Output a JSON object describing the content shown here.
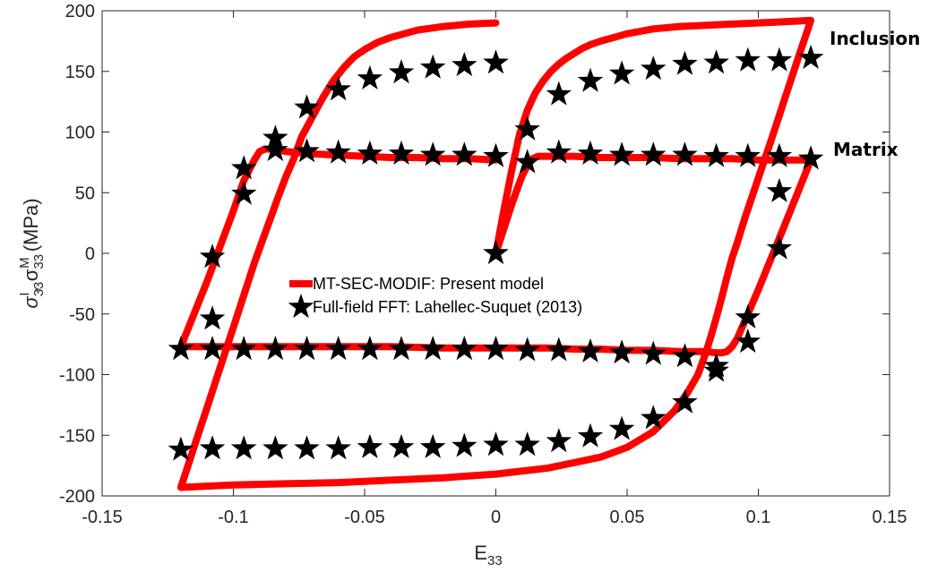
{
  "chart_data": {
    "type": "line",
    "xlabel": "E",
    "xlabel_sub": "33",
    "ylabel_parts": [
      "σ",
      "33",
      "I",
      ", σ",
      "33",
      "M",
      " (MPa)"
    ],
    "xlim": [
      -0.15,
      0.15
    ],
    "ylim": [
      -200,
      200
    ],
    "xticks": [
      -0.15,
      -0.1,
      -0.05,
      0,
      0.05,
      0.1,
      0.15
    ],
    "xtick_labels": [
      "-0.15",
      "-0.1",
      "-0.05",
      "0",
      "0.05",
      "0.1",
      "0.15"
    ],
    "yticks": [
      -200,
      -150,
      -100,
      -50,
      0,
      50,
      100,
      150,
      200
    ],
    "ytick_labels": [
      "-200",
      "-150",
      "-100",
      "-50",
      "0",
      "50",
      "100",
      "150",
      "200"
    ],
    "grid": false,
    "legend_position": "center",
    "annotations": [
      {
        "text": "Inclusion",
        "x": 0.124,
        "y": 175
      },
      {
        "text": "Matrix",
        "x": 0.126,
        "y": 85
      }
    ],
    "series": [
      {
        "name": "MT-SEC-MODIF: Present model",
        "color": "#ff0000",
        "style": "line",
        "segments": [
          {
            "x": [
              0,
              0.003,
              0.006,
              0.009,
              0.012,
              0.015,
              0.018,
              0.021,
              0.024,
              0.027,
              0.03,
              0.033,
              0.036,
              0.04,
              0.045,
              0.05,
              0.055,
              0.06,
              0.07,
              0.08,
              0.09,
              0.1,
              0.11,
              0.12,
              0.115,
              0.11,
              0.105,
              0.1,
              0.095,
              0.092,
              0.09,
              0.088,
              0.086,
              0.084,
              0.082,
              0.08,
              0.077,
              0.073,
              0.068,
              0.06,
              0.05,
              0.04,
              0.02,
              0.0,
              -0.02,
              -0.04,
              -0.06,
              -0.08,
              -0.1,
              -0.12,
              -0.115,
              -0.11,
              -0.105,
              -0.1,
              -0.095,
              -0.092,
              -0.089,
              -0.086,
              -0.083,
              -0.08,
              -0.077,
              -0.074,
              -0.07,
              -0.066,
              -0.062,
              -0.058,
              -0.054,
              -0.05,
              -0.045,
              -0.04,
              -0.03,
              -0.02,
              -0.01,
              0.0
            ],
            "y": [
              0,
              35,
              68,
              98,
              118,
              132,
              142,
              150,
              156,
              161,
              165,
              169,
              172,
              175,
              178,
              181,
              183,
              185,
              187,
              188,
              189,
              190,
              191,
              192,
              160,
              127,
              94,
              62,
              30,
              9,
              -4,
              -20,
              -37,
              -53,
              -68,
              -82,
              -100,
              -115,
              -130,
              -147,
              -160,
              -168,
              -177,
              -182,
              -185,
              -187,
              -189,
              -190,
              -191,
              -193,
              -160,
              -127,
              -94,
              -61,
              -28,
              -8,
              10,
              28,
              46,
              63,
              78,
              96,
              112,
              128,
              142,
              153,
              162,
              168,
              174,
              178,
              184,
              187,
              189,
              190
            ]
          },
          {
            "x": [
              0,
              0.003,
              0.006,
              0.008,
              0.01,
              0.012,
              0.014,
              0.016,
              0.02,
              0.03,
              0.04,
              0.05,
              0.06,
              0.07,
              0.08,
              0.09,
              0.1,
              0.11,
              0.12,
              0.11,
              0.1,
              0.095,
              0.092,
              0.09,
              0.088,
              0.086,
              0.084,
              0.08,
              0.07,
              0.06,
              0.05,
              0.04,
              0.03,
              0.02,
              0.0,
              -0.02,
              -0.04,
              -0.06,
              -0.08,
              -0.1,
              -0.12,
              -0.11,
              -0.1,
              -0.096,
              -0.092,
              -0.09,
              -0.088,
              -0.085,
              -0.08,
              -0.07,
              -0.06,
              -0.05,
              -0.04,
              -0.03,
              -0.02,
              -0.01,
              0.0
            ],
            "y": [
              0,
              20,
              40,
              52,
              64,
              72,
              78,
              80,
              80,
              80,
              79,
              79,
              79,
              78,
              78,
              78,
              77,
              77,
              77,
              23,
              -30,
              -55,
              -70,
              -77,
              -81,
              -82,
              -82,
              -81,
              -81,
              -80,
              -80,
              -79,
              -79,
              -78,
              -78,
              -78,
              -77,
              -77,
              -77,
              -77,
              -77,
              -23,
              35,
              60,
              77,
              84,
              86,
              86,
              84,
              82,
              81,
              80,
              79,
              79,
              78,
              78,
              77
            ]
          }
        ]
      },
      {
        "name": "Full-field FFT: Lahellec-Suquet (2013)",
        "color": "#000000",
        "style": "star",
        "x": [
          0.0,
          0.012,
          0.024,
          0.036,
          0.048,
          0.06,
          0.072,
          0.084,
          0.096,
          0.108,
          0.12,
          0.108,
          0.096,
          0.084,
          0.072,
          0.06,
          0.048,
          0.036,
          0.024,
          0.012,
          0.0,
          -0.012,
          -0.024,
          -0.036,
          -0.048,
          -0.06,
          -0.072,
          -0.084,
          -0.096,
          -0.108,
          -0.12,
          -0.108,
          -0.096,
          -0.084,
          -0.072,
          -0.06,
          -0.048,
          -0.036,
          -0.024,
          -0.012,
          0.0,
          0.012,
          0.024,
          0.036,
          0.048,
          0.06,
          0.072,
          0.084,
          0.096,
          0.108,
          0.12,
          0.108,
          0.096,
          0.084,
          0.072,
          0.06,
          0.048,
          0.036,
          0.024,
          0.012,
          0.0,
          -0.012,
          -0.024,
          -0.036,
          -0.048,
          -0.06,
          -0.072,
          -0.084,
          -0.096,
          -0.108,
          -0.12,
          -0.108,
          -0.096,
          -0.084,
          -0.072,
          -0.06,
          -0.048,
          -0.036,
          -0.024,
          -0.012,
          0.0
        ],
        "y": [
          0,
          102,
          131,
          142,
          148,
          152,
          156,
          157,
          159,
          159,
          161,
          4,
          -53,
          -97,
          -123,
          -136,
          -145,
          -151,
          -155,
          -158,
          -158,
          -159,
          -160,
          -160,
          -160,
          -161,
          -161,
          -161,
          -161,
          -161,
          -162,
          -3,
          70,
          95,
          120,
          135,
          144,
          149,
          153,
          155,
          157,
          75,
          83,
          82,
          81,
          81,
          81,
          80,
          80,
          80,
          78,
          51,
          -73,
          -93,
          -85,
          -83,
          -82,
          -81,
          -80,
          -80,
          -79,
          -79,
          -79,
          -79,
          -79,
          -79,
          -79,
          -79,
          -79,
          -79,
          -79,
          -54,
          49,
          85,
          84,
          83,
          82,
          82,
          81,
          81,
          80
        ]
      }
    ]
  }
}
